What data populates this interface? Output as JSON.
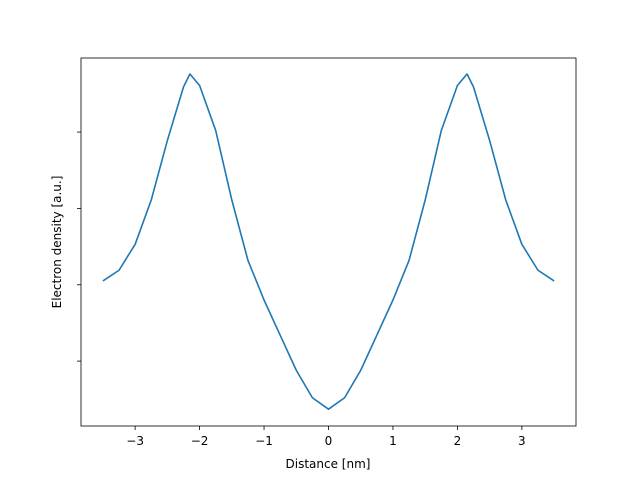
{
  "chart_data": {
    "type": "line",
    "x_label": "Distance [nm]",
    "y_label": "Electron density [a.u.]",
    "x": [
      -3.5,
      -3.25,
      -3.0,
      -2.75,
      -2.5,
      -2.25,
      -2.15,
      -2.0,
      -1.75,
      -1.5,
      -1.25,
      -1.0,
      -0.75,
      -0.5,
      -0.25,
      0,
      0.25,
      0.5,
      0.75,
      1.0,
      1.25,
      1.5,
      1.75,
      2.0,
      2.15,
      2.25,
      2.5,
      2.75,
      3.0,
      3.25,
      3.5
    ],
    "series": [
      {
        "color": "#1f77b4",
        "values": [
          2.05,
          2.19,
          2.53,
          3.11,
          3.89,
          4.59,
          4.76,
          4.61,
          4.02,
          3.11,
          2.32,
          1.8,
          1.34,
          0.88,
          0.52,
          0.37,
          0.52,
          0.88,
          1.34,
          1.8,
          2.32,
          3.11,
          4.02,
          4.61,
          4.76,
          4.59,
          3.89,
          3.11,
          2.53,
          2.19,
          2.05
        ]
      }
    ],
    "xlim": [
      -3.84,
      3.84
    ],
    "xticks": [
      {
        "value": -3,
        "label": "−3"
      },
      {
        "value": -2,
        "label": "−2"
      },
      {
        "value": -1,
        "label": "−1"
      },
      0,
      1,
      2,
      3
    ],
    "ylim": [
      0.15,
      4.97
    ],
    "yticks": [
      1,
      2,
      3,
      4
    ],
    "ytick_labels": false,
    "grid": false
  }
}
